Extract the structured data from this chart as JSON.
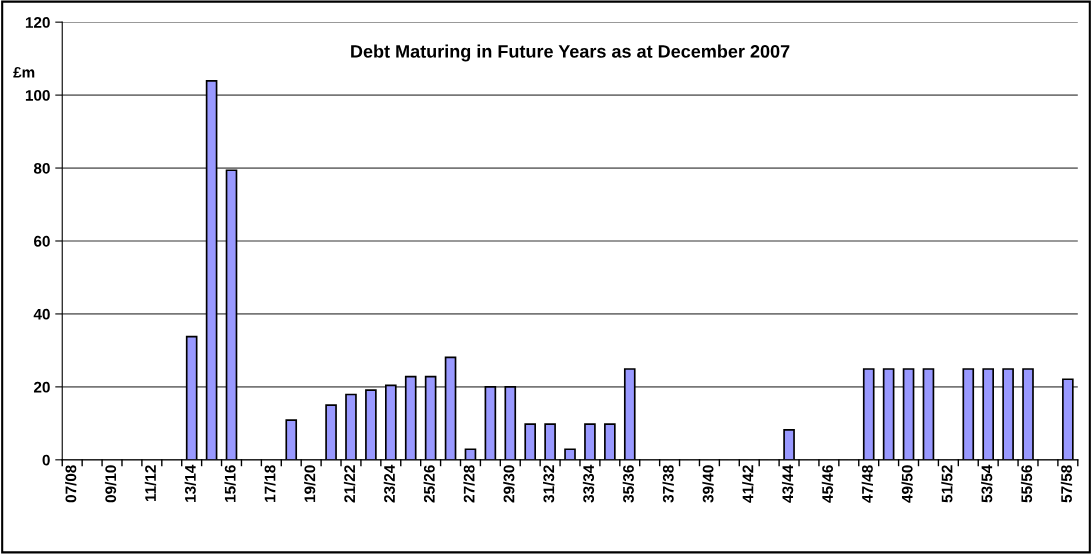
{
  "chart_data": {
    "type": "bar",
    "title": "Debt Maturing in Future Years as at December 2007",
    "ylabel": "£m",
    "categories": [
      "07/08",
      null,
      "09/10",
      null,
      "11/12",
      null,
      "13/14",
      null,
      "15/16",
      null,
      "17/18",
      null,
      "19/20",
      null,
      "21/22",
      null,
      "23/24",
      null,
      "25/26",
      null,
      "27/28",
      null,
      "29/30",
      null,
      "31/32",
      null,
      "33/34",
      null,
      "35/36",
      null,
      "37/38",
      null,
      "39/40",
      null,
      "41/42",
      null,
      "43/44",
      null,
      "45/46",
      null,
      "47/48",
      null,
      "49/50",
      null,
      "51/52",
      null,
      "53/54",
      null,
      "55/56",
      null,
      "57/58"
    ],
    "values": [
      null,
      null,
      null,
      null,
      null,
      null,
      33.8,
      103.9,
      79.4,
      null,
      null,
      10.9,
      null,
      15.0,
      17.9,
      19.1,
      20.4,
      22.8,
      22.8,
      28.1,
      2.9,
      20,
      20,
      9.8,
      9.8,
      2.9,
      9.8,
      9.8,
      24.9,
      null,
      null,
      null,
      null,
      null,
      null,
      null,
      8.2,
      null,
      null,
      null,
      24.9,
      24.9,
      24.9,
      24.9,
      null,
      24.9,
      24.9,
      24.9,
      24.9,
      null,
      22.1
    ],
    "color": "#9999ff",
    "ylim": [
      0,
      120
    ],
    "yticks": [
      0,
      20,
      40,
      60,
      80,
      100,
      120
    ],
    "grid": "y",
    "legend": false
  }
}
